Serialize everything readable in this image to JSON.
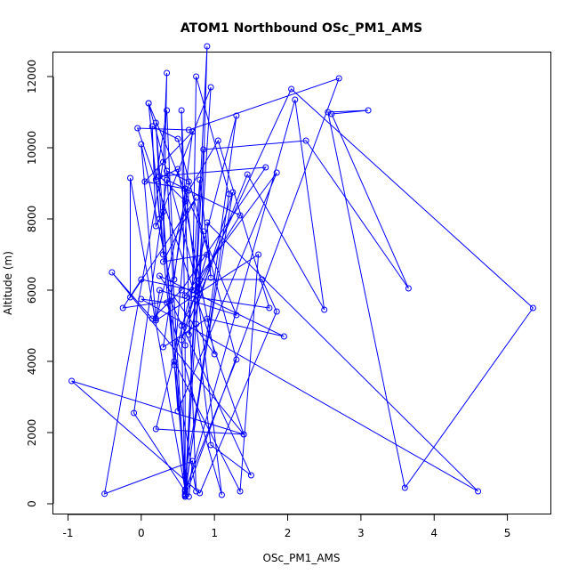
{
  "chart_data": {
    "type": "line",
    "title": "ATOM1 Northbound OSc_PM1_AMS",
    "xlabel": "OSc_PM1_AMS",
    "ylabel": "Altitude (m)",
    "xlim": [
      -1.2,
      5.6
    ],
    "ylim": [
      -300,
      12700
    ],
    "xticks": [
      -1,
      0,
      1,
      2,
      3,
      4,
      5
    ],
    "yticks": [
      0,
      2000,
      4000,
      6000,
      8000,
      10000,
      12000
    ],
    "series": [
      {
        "color": "#0000ff",
        "marker": "open-circle",
        "points": [
          [
            0.65,
            200
          ],
          [
            0.7,
            1200
          ],
          [
            -0.5,
            280
          ],
          [
            0.3,
            9600
          ],
          [
            0.35,
            12100
          ],
          [
            0.3,
            7000
          ],
          [
            0.2,
            10700
          ],
          [
            0.45,
            3900
          ],
          [
            0.75,
            350
          ],
          [
            0.55,
            11050
          ],
          [
            0.6,
            4450
          ],
          [
            0.6,
            280
          ],
          [
            0.9,
            12850
          ],
          [
            0.8,
            5900
          ],
          [
            0.1,
            11250
          ],
          [
            0.25,
            8000
          ],
          [
            0.95,
            11700
          ],
          [
            0.6,
            230
          ],
          [
            1.3,
            10900
          ],
          [
            0.2,
            2100
          ],
          [
            1.4,
            1950
          ],
          [
            -0.05,
            10550
          ],
          [
            0.65,
            10500
          ],
          [
            2.7,
            11950
          ],
          [
            0.6,
            200
          ],
          [
            0.55,
            5000
          ],
          [
            2.05,
            11650
          ],
          [
            5.35,
            5500
          ],
          [
            3.6,
            450
          ],
          [
            2.55,
            11000
          ],
          [
            3.1,
            11050
          ],
          [
            2.6,
            10950
          ],
          [
            3.65,
            6050
          ],
          [
            2.25,
            10200
          ],
          [
            0.85,
            9950
          ],
          [
            0.6,
            350
          ],
          [
            -0.1,
            2550
          ],
          [
            0.35,
            9100
          ],
          [
            1.35,
            8100
          ],
          [
            0.8,
            6300
          ],
          [
            1.65,
            6300
          ],
          [
            1.85,
            5400
          ],
          [
            0.8,
            300
          ],
          [
            -0.95,
            3450
          ],
          [
            1.4,
            1950
          ],
          [
            -0.4,
            6500
          ],
          [
            0.15,
            5200
          ],
          [
            0.55,
            6000
          ],
          [
            1.7,
            9450
          ],
          [
            0.25,
            9200
          ],
          [
            0.6,
            8500
          ],
          [
            0.2,
            5150
          ],
          [
            1.6,
            7000
          ],
          [
            1.35,
            350
          ],
          [
            0.45,
            4000
          ],
          [
            0.65,
            8800
          ],
          [
            1.05,
            10200
          ],
          [
            1.75,
            5500
          ],
          [
            0.6,
            5850
          ],
          [
            1.85,
            9300
          ],
          [
            0.5,
            2600
          ],
          [
            0.3,
            8200
          ],
          [
            0.2,
            7800
          ],
          [
            0.15,
            10600
          ],
          [
            0.5,
            10250
          ],
          [
            1.3,
            4050
          ],
          [
            0.6,
            400
          ],
          [
            -0.15,
            9150
          ],
          [
            -0.15,
            5800
          ],
          [
            0.75,
            8600
          ],
          [
            0.3,
            6800
          ],
          [
            0.9,
            7000
          ],
          [
            0.55,
            4600
          ],
          [
            1.45,
            9250
          ],
          [
            2.5,
            5450
          ],
          [
            2.1,
            11350
          ],
          [
            0.6,
            250
          ],
          [
            0.4,
            6200
          ],
          [
            0.0,
            10100
          ],
          [
            0.2,
            5200
          ],
          [
            0.25,
            6000
          ],
          [
            1.3,
            5300
          ],
          [
            0.1,
            11250
          ],
          [
            0.6,
            800
          ],
          [
            1.25,
            8750
          ],
          [
            0.65,
            4750
          ],
          [
            0.8,
            9100
          ],
          [
            0.95,
            6350
          ],
          [
            0.9,
            7900
          ],
          [
            4.6,
            350
          ],
          [
            0.0,
            5750
          ],
          [
            0.35,
            5650
          ],
          [
            1.1,
            250
          ],
          [
            0.6,
            8850
          ],
          [
            0.05,
            9050
          ],
          [
            0.7,
            10450
          ],
          [
            0.45,
            6300
          ],
          [
            0.35,
            11050
          ],
          [
            0.2,
            9100
          ],
          [
            0.5,
            9400
          ],
          [
            1.0,
            4200
          ],
          [
            0.25,
            6400
          ],
          [
            1.95,
            4700
          ],
          [
            0.9,
            5200
          ],
          [
            0.3,
            4400
          ],
          [
            0.65,
            9050
          ],
          [
            0.35,
            9350
          ],
          [
            0.6,
            350
          ],
          [
            1.2,
            8700
          ],
          [
            0.75,
            12000
          ],
          [
            0.7,
            6000
          ],
          [
            0.0,
            6300
          ],
          [
            -0.25,
            5500
          ],
          [
            0.4,
            5700
          ],
          [
            1.5,
            800
          ],
          [
            0.95,
            1650
          ],
          [
            0.75,
            5050
          ],
          [
            0.85,
            7650
          ]
        ]
      }
    ]
  }
}
